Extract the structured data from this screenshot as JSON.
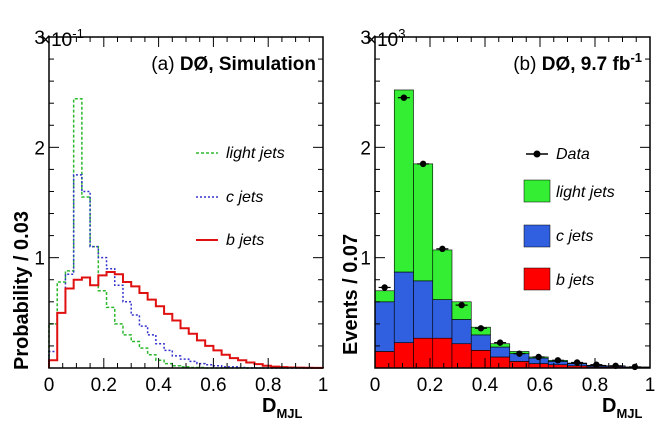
{
  "chart_data": [
    {
      "type": "line",
      "panel_label": "(a) DØ, Simulation",
      "panel_prefix": "(a)",
      "panel_main": "DØ, Simulation",
      "ylabel": "Probability / 0.03",
      "xlabel_main": "D",
      "xlabel_sub": "MJL",
      "y_multiplier_base": "×10",
      "y_multiplier_exp": "-1",
      "xlim": [
        0,
        1
      ],
      "ylim": [
        0,
        3
      ],
      "x_ticks": [
        "0",
        "0.2",
        "0.4",
        "0.6",
        "0.8",
        "1"
      ],
      "y_ticks": [
        "1",
        "2",
        "3"
      ],
      "bin_edges": [
        0,
        0.03,
        0.06,
        0.09,
        0.12,
        0.15,
        0.18,
        0.21,
        0.24,
        0.27,
        0.3,
        0.33,
        0.36,
        0.39,
        0.42,
        0.45,
        0.48,
        0.51,
        0.54,
        0.57,
        0.6,
        0.63,
        0.66,
        0.69,
        0.72,
        0.75,
        0.78,
        0.81,
        0.84,
        0.87,
        0.9,
        0.93,
        0.96,
        1.0
      ],
      "series": [
        {
          "name": "light jets",
          "color": "#2db82d",
          "dash": "3,2",
          "values": [
            0.4,
            0.78,
            0.88,
            2.44,
            1.55,
            1.1,
            0.7,
            0.55,
            0.4,
            0.3,
            0.24,
            0.18,
            0.12,
            0.07,
            0.04,
            0.02,
            0.01,
            0.005,
            0.005,
            0,
            0,
            0,
            0,
            0,
            0,
            0,
            0,
            0,
            0,
            0,
            0,
            0,
            0
          ]
        },
        {
          "name": "c jets",
          "color": "#3333cc",
          "dash": "2,2",
          "values": [
            0.15,
            0.5,
            0.85,
            1.75,
            1.6,
            1.1,
            1.0,
            0.9,
            0.75,
            0.6,
            0.48,
            0.38,
            0.3,
            0.22,
            0.16,
            0.11,
            0.08,
            0.06,
            0.04,
            0.03,
            0.02,
            0.01,
            0.01,
            0.005,
            0,
            0,
            0,
            0,
            0,
            0,
            0,
            0,
            0
          ]
        },
        {
          "name": "b jets",
          "color": "#e01010",
          "dash": "",
          "values": [
            0.07,
            0.5,
            0.72,
            0.8,
            0.82,
            0.75,
            0.84,
            0.87,
            0.85,
            0.78,
            0.74,
            0.68,
            0.62,
            0.56,
            0.49,
            0.43,
            0.36,
            0.31,
            0.25,
            0.2,
            0.16,
            0.12,
            0.09,
            0.07,
            0.05,
            0.035,
            0.02,
            0.012,
            0.008,
            0.005,
            0.003,
            0.002,
            0.001
          ]
        }
      ]
    },
    {
      "type": "bar",
      "stacked": true,
      "panel_label": "(b) DØ, 9.7 fb-1",
      "panel_prefix": "(b)",
      "panel_main": "DØ, 9.7 fb",
      "panel_sup": "-1",
      "ylabel": "Events / 0.07",
      "xlabel_main": "D",
      "xlabel_sub": "MJL",
      "y_multiplier_base": "×10",
      "y_multiplier_exp": "3",
      "xlim": [
        0,
        1
      ],
      "ylim": [
        0,
        3
      ],
      "x_ticks": [
        "0",
        "0.2",
        "0.4",
        "0.6",
        "0.8",
        "1"
      ],
      "y_ticks": [
        "1",
        "2",
        "3"
      ],
      "bin_edges": [
        0,
        0.07,
        0.14,
        0.21,
        0.28,
        0.35,
        0.42,
        0.49,
        0.56,
        0.63,
        0.7,
        0.77,
        0.84,
        0.91,
        1.0
      ],
      "series": [
        {
          "name": "b jets",
          "color": "#ff0000",
          "values": [
            0.15,
            0.23,
            0.27,
            0.27,
            0.22,
            0.16,
            0.1,
            0.06,
            0.04,
            0.03,
            0.02,
            0.01,
            0.01,
            0.005
          ]
        },
        {
          "name": "c jets",
          "color": "#3060e0",
          "values": [
            0.45,
            0.64,
            0.52,
            0.35,
            0.22,
            0.14,
            0.09,
            0.07,
            0.05,
            0.03,
            0.02,
            0.01,
            0.01,
            0.005
          ]
        },
        {
          "name": "light jets",
          "color": "#33ee33",
          "values": [
            0.1,
            1.65,
            1.06,
            0.45,
            0.16,
            0.07,
            0.03,
            0.02,
            0.01,
            0.01,
            0.005,
            0.005,
            0,
            0
          ]
        }
      ],
      "data": {
        "name": "Data",
        "x": [
          0.035,
          0.105,
          0.175,
          0.245,
          0.315,
          0.385,
          0.455,
          0.525,
          0.595,
          0.665,
          0.735,
          0.805,
          0.875,
          0.945
        ],
        "y": [
          0.73,
          2.45,
          1.85,
          1.08,
          0.57,
          0.36,
          0.23,
          0.13,
          0.1,
          0.07,
          0.05,
          0.03,
          0.02,
          0.01
        ]
      },
      "legend": [
        "Data",
        "light jets",
        "c jets",
        "b jets"
      ]
    }
  ]
}
